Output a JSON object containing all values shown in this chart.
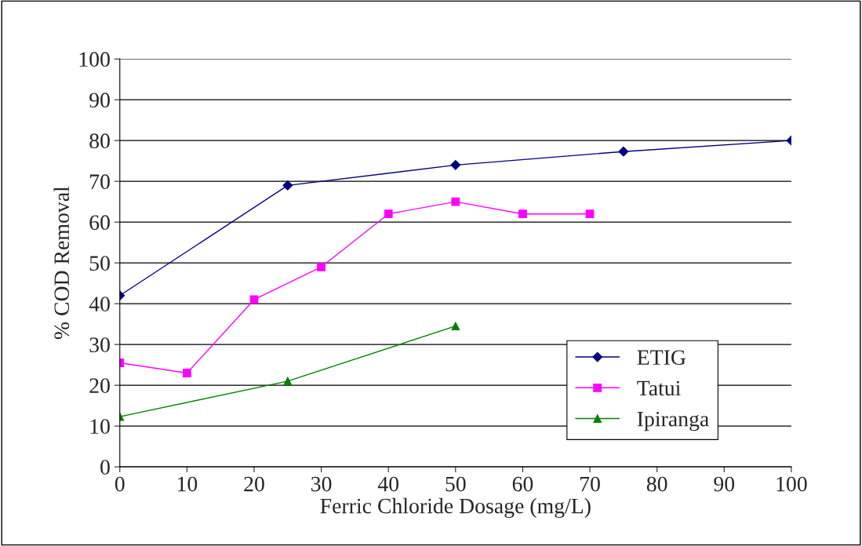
{
  "chart_data": {
    "type": "line",
    "xlabel": "Ferric Chloride Dosage (mg/L)",
    "ylabel": "% COD Removal",
    "xlim": [
      0,
      100
    ],
    "xticks": [
      0,
      10,
      20,
      30,
      40,
      50,
      60,
      70,
      80,
      90,
      100
    ],
    "ylim": [
      0,
      100
    ],
    "yticks": [
      0,
      10,
      20,
      30,
      40,
      50,
      60,
      70,
      80,
      90,
      100
    ],
    "grid": "y",
    "legend": "bottom right",
    "line_style": "solid",
    "series": [
      {
        "name": "ETIG",
        "color": "#000080",
        "marker": "diamond",
        "x": [
          0,
          25,
          50,
          75,
          100
        ],
        "values": [
          42,
          69,
          74,
          77.3,
          80
        ]
      },
      {
        "name": "Tatui",
        "color": "#ff00ff",
        "marker": "square",
        "x": [
          0,
          10,
          20,
          30,
          40,
          50,
          60,
          70
        ],
        "values": [
          25.5,
          23,
          41,
          49,
          62,
          65,
          62,
          62
        ]
      },
      {
        "name": "Ipiranga",
        "color": "#008000",
        "marker": "triangle",
        "x": [
          0,
          25,
          50
        ],
        "values": [
          12.3,
          21,
          34.5
        ]
      }
    ]
  }
}
